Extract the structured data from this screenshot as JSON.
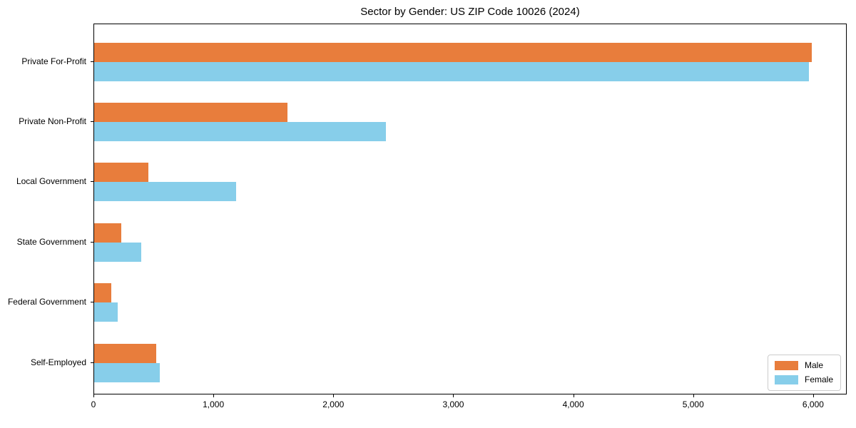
{
  "chart_data": {
    "type": "bar",
    "orientation": "horizontal",
    "title": "Sector by Gender: US ZIP Code 10026 (2024)",
    "categories": [
      "Private For-Profit",
      "Private Non-Profit",
      "Local Government",
      "State Government",
      "Federal Government",
      "Self-Employed"
    ],
    "series": [
      {
        "name": "Male",
        "color": "#e87d3c",
        "values": [
          5980,
          1610,
          450,
          225,
          140,
          515
        ]
      },
      {
        "name": "Female",
        "color": "#87ceea",
        "values": [
          5960,
          2435,
          1185,
          390,
          195,
          550
        ]
      }
    ],
    "xlabel": "",
    "ylabel": "",
    "xlim": [
      0,
      6280
    ],
    "xticks": [
      0,
      1000,
      2000,
      3000,
      4000,
      5000,
      6000
    ],
    "xtick_labels": [
      "0",
      "1,000",
      "2,000",
      "3,000",
      "4,000",
      "5,000",
      "6,000"
    ],
    "grid": false,
    "legend": {
      "position": "lower right",
      "entries": [
        "Male",
        "Female"
      ]
    }
  }
}
